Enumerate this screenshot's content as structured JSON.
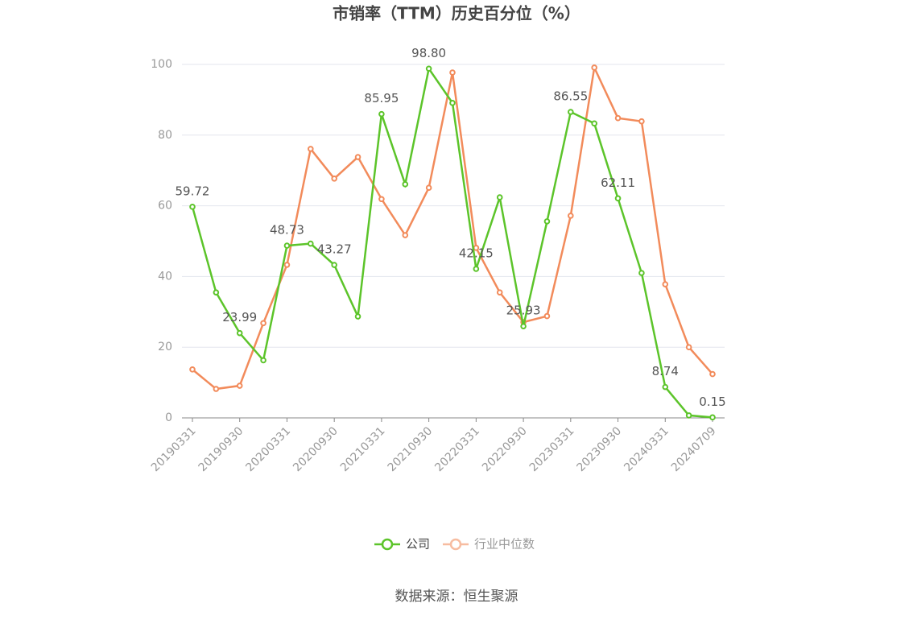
{
  "chart_data": {
    "type": "line",
    "title": "市销率（TTM）历史百分位（%）",
    "source": "数据来源：恒生聚源",
    "categories": [
      "20190331",
      null,
      "20190930",
      null,
      "20200331",
      null,
      "20200930",
      null,
      "20210331",
      null,
      "20210930",
      null,
      "20220331",
      null,
      "20220930",
      null,
      "20230331",
      null,
      "20230930",
      null,
      "20240331",
      null,
      "20240709"
    ],
    "ylim": [
      0,
      100
    ],
    "yticks": [
      0,
      20,
      40,
      60,
      80,
      100
    ],
    "grid": true,
    "legend": "bottom",
    "series": [
      {
        "name": "公司",
        "color": "#5cc42a",
        "values": [
          59.72,
          35.5,
          23.99,
          16.3,
          48.73,
          49.3,
          43.27,
          28.7,
          85.95,
          66.1,
          98.8,
          89.1,
          42.15,
          62.4,
          25.93,
          55.6,
          86.55,
          83.3,
          62.11,
          41.0,
          8.74,
          0.7,
          0.15
        ],
        "value_labels": [
          "59.72",
          null,
          "23.99",
          null,
          "48.73",
          null,
          "43.27",
          null,
          "85.95",
          null,
          "98.80",
          null,
          "42.15",
          null,
          "25.93",
          null,
          "86.55",
          null,
          "62.11",
          null,
          "8.74",
          null,
          "0.15"
        ]
      },
      {
        "name": "行业中位数",
        "color": "#f28b5b",
        "values": [
          13.7,
          8.2,
          9.1,
          26.8,
          43.3,
          76.1,
          67.7,
          73.8,
          61.9,
          51.7,
          65.1,
          97.7,
          48.1,
          35.5,
          27.1,
          28.8,
          57.2,
          99.1,
          84.8,
          83.9,
          37.8,
          20.0,
          12.4
        ]
      }
    ]
  }
}
